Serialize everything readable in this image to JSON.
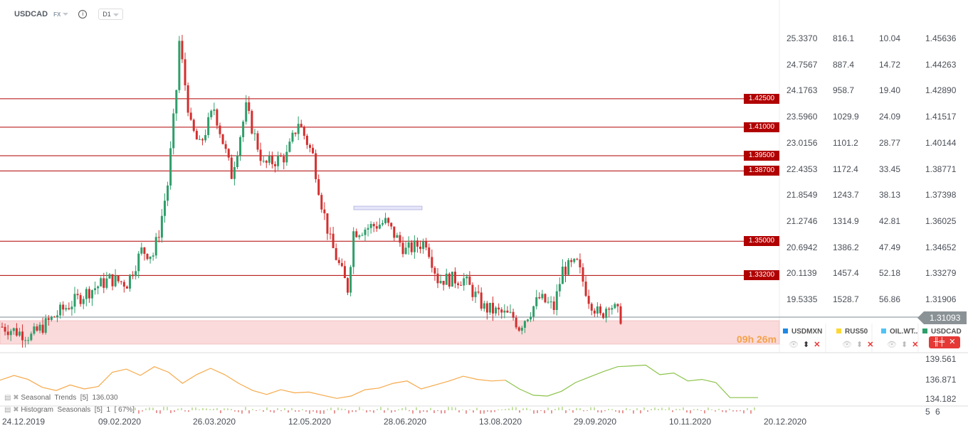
{
  "header": {
    "symbol": "USDCAD",
    "market": "FX",
    "timeframe": "D1"
  },
  "axes": {
    "columns": [
      [
        "25.3370",
        "24.7567",
        "24.1763",
        "23.5960",
        "23.0156",
        "22.4353",
        "21.8549",
        "21.2746",
        "20.6942",
        "20.1139",
        "19.5335"
      ],
      [
        "816.1",
        "887.4",
        "958.7",
        "1029.9",
        "1101.2",
        "1172.4",
        "1243.7",
        "1314.9",
        "1386.2",
        "1457.4",
        "1528.7"
      ],
      [
        "10.04",
        "14.72",
        "19.40",
        "24.09",
        "28.77",
        "33.45",
        "38.13",
        "42.81",
        "47.49",
        "52.18",
        "56.86"
      ],
      [
        "1.45636",
        "1.44263",
        "1.42890",
        "1.41517",
        "1.40144",
        "1.38771",
        "1.37398",
        "1.36025",
        "1.34652",
        "1.33279",
        "1.31906"
      ]
    ],
    "current_price": "1.31093",
    "indicator_ticks": [
      "139.561",
      "136.871",
      "134.182"
    ],
    "histogram_ticks": [
      "5",
      "6"
    ]
  },
  "levels": [
    "1.42500",
    "1.41000",
    "1.39500",
    "1.38700",
    "1.35000",
    "1.33200"
  ],
  "timer": "09h 26m",
  "legend": [
    {
      "name": "USDMXN",
      "color": "#1e88e5"
    },
    {
      "name": "RUS50",
      "color": "#fdd835"
    },
    {
      "name": "OIL.WT..",
      "color": "#4fc3f7"
    },
    {
      "name": "USDCAD",
      "color": "#2e9e6a"
    }
  ],
  "indicators": {
    "seasonal": "Seasonal  Trends  [5]  136.030",
    "histogram": "Histogram  Seasonals  [5]  1  [ 67%]"
  },
  "dates": [
    "24.12.2019",
    "09.02.2020",
    "26.03.2020",
    "12.05.2020",
    "28.06.2020",
    "13.08.2020",
    "29.09.2020",
    "10.11.2020",
    "20.12.2020"
  ],
  "colors": {
    "up": "#2e9e6a",
    "down": "#d32f2f",
    "level": "#b00000",
    "seasonal_past": "#f6a94a",
    "seasonal_future": "#8bc34a"
  },
  "chart_data": {
    "type": "candlestick",
    "symbol": "USDCAD",
    "ylim": [
      1.296,
      1.47
    ],
    "key_closes": [
      [
        0,
        1.305
      ],
      [
        10,
        1.3
      ],
      [
        20,
        1.313
      ],
      [
        29,
        1.323
      ],
      [
        37,
        1.33
      ],
      [
        43,
        1.328
      ],
      [
        48,
        1.345
      ],
      [
        52,
        1.343
      ],
      [
        54,
        1.355
      ],
      [
        57,
        1.38
      ],
      [
        60,
        1.43
      ],
      [
        61,
        1.455
      ],
      [
        65,
        1.41
      ],
      [
        68,
        1.4
      ],
      [
        73,
        1.42
      ],
      [
        79,
        1.385
      ],
      [
        84,
        1.42
      ],
      [
        90,
        1.39
      ],
      [
        98,
        1.395
      ],
      [
        102,
        1.413
      ],
      [
        107,
        1.395
      ],
      [
        110,
        1.37
      ],
      [
        113,
        1.35
      ],
      [
        119,
        1.325
      ],
      [
        121,
        1.355
      ],
      [
        132,
        1.36
      ],
      [
        139,
        1.345
      ],
      [
        146,
        1.35
      ],
      [
        150,
        1.33
      ],
      [
        159,
        1.33
      ],
      [
        166,
        1.315
      ],
      [
        176,
        1.31
      ],
      [
        178,
        1.305
      ],
      [
        185,
        1.32
      ],
      [
        190,
        1.315
      ],
      [
        193,
        1.335
      ],
      [
        198,
        1.338
      ],
      [
        202,
        1.32
      ],
      [
        206,
        1.31
      ],
      [
        209,
        1.318
      ],
      [
        213,
        1.31
      ]
    ],
    "seasonal": [
      136.9,
      137.5,
      137.0,
      136.0,
      135.6,
      136.3,
      135.8,
      136.1,
      137.9,
      138.3,
      137.5,
      138.6,
      137.9,
      136.5,
      137.6,
      138.4,
      137.6,
      136.5,
      135.6,
      135.1,
      135.7,
      135.3,
      135.4,
      135.0,
      134.6,
      134.9,
      135.7,
      135.9,
      136.5,
      136.8,
      135.8,
      136.3,
      136.8,
      137.4,
      137.0,
      136.8,
      136.9,
      135.8,
      135.0,
      134.9,
      135.5,
      136.6,
      137.3,
      138.0,
      138.6,
      138.7,
      138.8,
      137.6,
      137.8,
      136.8,
      137.0,
      136.6,
      134.7,
      134.7,
      134.7
    ],
    "seasonal_split_index": 36
  }
}
